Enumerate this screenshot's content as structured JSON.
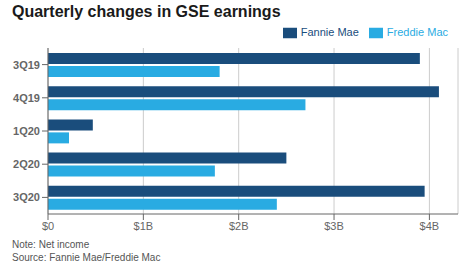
{
  "chart_data": {
    "type": "bar",
    "orientation": "horizontal",
    "title": "Quarterly changes in GSE earnings",
    "categories": [
      "3Q19",
      "4Q19",
      "1Q20",
      "2Q20",
      "3Q20"
    ],
    "series": [
      {
        "name": "Fannie Mae",
        "color": "#1a4d7c",
        "values": [
          3.9,
          4.1,
          0.47,
          2.5,
          3.95
        ]
      },
      {
        "name": "Freddie Mac",
        "color": "#29abe2",
        "values": [
          1.8,
          2.7,
          0.22,
          1.75,
          2.4
        ]
      }
    ],
    "xlim": [
      0,
      4.3
    ],
    "xticks": [
      {
        "value": 0,
        "label": "$0"
      },
      {
        "value": 1,
        "label": "$1B"
      },
      {
        "value": 2,
        "label": "$2B"
      },
      {
        "value": 3,
        "label": "$3B"
      },
      {
        "value": 4,
        "label": "$4B"
      }
    ],
    "grid": true,
    "legend": "upper right",
    "annotations": [
      "Note: Net income",
      "Source: Fannie Mae/Freddie Mac"
    ]
  }
}
